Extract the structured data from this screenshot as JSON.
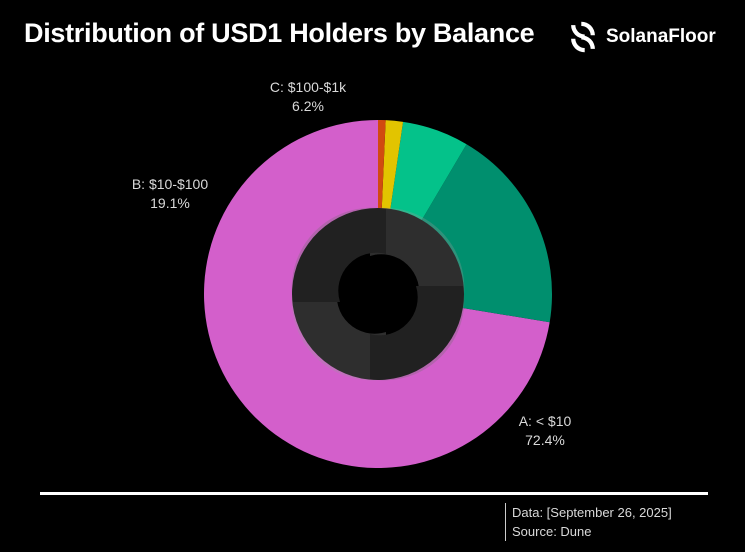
{
  "header": {
    "title": "Distribution of USD1 Holders by Balance",
    "brand_name": "SolanaFloor",
    "brand_icon": "solanafloor-logo-icon"
  },
  "footer": {
    "data_line": "Data: [September 26, 2025]",
    "source_line": "Source: Dune"
  },
  "chart_data": {
    "type": "pie",
    "title": "Distribution of USD1 Holders by Balance",
    "donut": true,
    "center_icon": "solanafloor-logo-icon",
    "slices": [
      {
        "label": "A: < $10",
        "value": 72.4,
        "value_label": "72.4%",
        "color": "#d35fcb"
      },
      {
        "label": "B: $10-$100",
        "value": 19.1,
        "value_label": "19.1%",
        "color": "#008f6e"
      },
      {
        "label": "C: $100-$1k",
        "value": 6.2,
        "value_label": "6.2%",
        "color": "#04c28a"
      },
      {
        "label": "",
        "value": 1.6,
        "value_label": "",
        "color": "#e2c400"
      },
      {
        "label": "",
        "value": 0.7,
        "value_label": "",
        "color": "#d14a10"
      }
    ]
  }
}
